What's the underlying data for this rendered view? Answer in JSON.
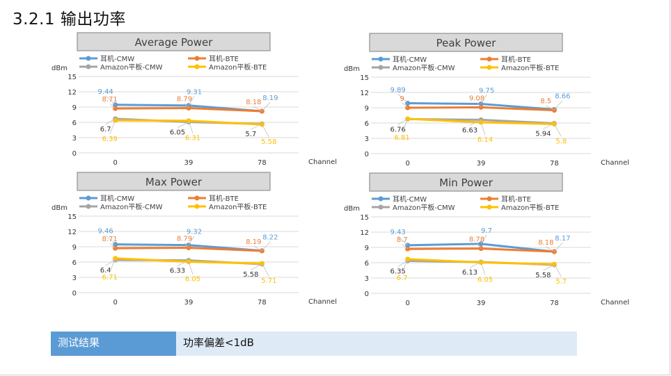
{
  "page_title": "3.2.1 输出功率",
  "result": {
    "label": "测试结果",
    "value": "功率偏差<1dB"
  },
  "colors": {
    "cmw_earphone": "#5b9bd5",
    "bte_earphone": "#ed7d31",
    "cmw_tablet": "#a5a5a5",
    "bte_tablet": "#ffc000"
  },
  "chart_data": [
    {
      "type": "line",
      "title": "Average Power",
      "ylabel": "dBm",
      "xlabel": "Channel",
      "categories": [
        "0",
        "39",
        "78"
      ],
      "ylim": [
        0,
        15
      ],
      "yticks": [
        "0",
        "3",
        "6",
        "9",
        "12",
        "15"
      ],
      "legend_position": "top",
      "series": [
        {
          "name": "耳机-CMW",
          "color": "#5b9bd5",
          "values": [
            9.44,
            9.31,
            8.19
          ],
          "labels": [
            "9.44",
            "9.31",
            "8.19"
          ]
        },
        {
          "name": "耳机-BTE",
          "color": "#ed7d31",
          "values": [
            8.71,
            8.79,
            8.18
          ],
          "labels": [
            "8.71",
            "8.79",
            "8.18"
          ]
        },
        {
          "name": "Amazon平板-CMW",
          "color": "#a5a5a5",
          "values": [
            6.7,
            6.05,
            5.7
          ],
          "labels": [
            "6.7",
            "6.05",
            "5.7"
          ]
        },
        {
          "name": "Amazon平板-BTE",
          "color": "#ffc000",
          "values": [
            6.39,
            6.31,
            5.58
          ],
          "labels": [
            "6.39",
            "6.31",
            "5.58"
          ]
        }
      ]
    },
    {
      "type": "line",
      "title": "Peak Power",
      "ylabel": "dBm",
      "xlabel": "Channel",
      "categories": [
        "0",
        "39",
        "78"
      ],
      "ylim": [
        0,
        15
      ],
      "yticks": [
        "0",
        "3",
        "6",
        "9",
        "12",
        "15"
      ],
      "legend_position": "top",
      "series": [
        {
          "name": "耳机-CMW",
          "color": "#5b9bd5",
          "values": [
            9.89,
            9.75,
            8.66
          ],
          "labels": [
            "9.89",
            "9.75",
            "8.66"
          ]
        },
        {
          "name": "耳机-BTE",
          "color": "#ed7d31",
          "values": [
            9,
            9.08,
            8.5
          ],
          "labels": [
            "9",
            "9.08",
            "8.5"
          ]
        },
        {
          "name": "Amazon平板-CMW",
          "color": "#a5a5a5",
          "values": [
            6.76,
            6.63,
            5.94
          ],
          "labels": [
            "6.76",
            "6.63",
            "5.94"
          ]
        },
        {
          "name": "Amazon平板-BTE",
          "color": "#ffc000",
          "values": [
            6.81,
            6.14,
            5.8
          ],
          "labels": [
            "6.81",
            "6.14",
            "5.8"
          ]
        }
      ]
    },
    {
      "type": "line",
      "title": "Max Power",
      "ylabel": "dBm",
      "xlabel": "Channel",
      "categories": [
        "0",
        "39",
        "78"
      ],
      "ylim": [
        0,
        15
      ],
      "yticks": [
        "0",
        "3",
        "6",
        "9",
        "12",
        "15"
      ],
      "legend_position": "top",
      "series": [
        {
          "name": "耳机-CMW",
          "color": "#5b9bd5",
          "values": [
            9.46,
            9.32,
            8.22
          ],
          "labels": [
            "9.46",
            "9.32",
            "8.22"
          ]
        },
        {
          "name": "耳机-BTE",
          "color": "#ed7d31",
          "values": [
            8.71,
            8.79,
            8.19
          ],
          "labels": [
            "8.71",
            "8.79",
            "8.19"
          ]
        },
        {
          "name": "Amazon平板-CMW",
          "color": "#a5a5a5",
          "values": [
            6.4,
            6.33,
            5.58
          ],
          "labels": [
            "6.4",
            "6.33",
            "5.58"
          ]
        },
        {
          "name": "Amazon平板-BTE",
          "color": "#ffc000",
          "values": [
            6.71,
            6.05,
            5.71
          ],
          "labels": [
            "6.71",
            "6.05",
            "5.71"
          ]
        }
      ]
    },
    {
      "type": "line",
      "title": "Min Power",
      "ylabel": "dBm",
      "xlabel": "Channel",
      "categories": [
        "0",
        "39",
        "78"
      ],
      "ylim": [
        0,
        15
      ],
      "yticks": [
        "0",
        "3",
        "6",
        "9",
        "12",
        "15"
      ],
      "legend_position": "top",
      "series": [
        {
          "name": "耳机-CMW",
          "color": "#5b9bd5",
          "values": [
            9.43,
            9.7,
            8.17
          ],
          "labels": [
            "9.43",
            "9.7",
            "8.17"
          ]
        },
        {
          "name": "耳机-BTE",
          "color": "#ed7d31",
          "values": [
            8.7,
            8.78,
            8.18
          ],
          "labels": [
            "8.7",
            "8.78",
            "8.18"
          ]
        },
        {
          "name": "Amazon平板-CMW",
          "color": "#a5a5a5",
          "values": [
            6.35,
            6.13,
            5.58
          ],
          "labels": [
            "6.35",
            "6.13",
            "5.58"
          ]
        },
        {
          "name": "Amazon平板-BTE",
          "color": "#ffc000",
          "values": [
            6.7,
            6.05,
            5.7
          ],
          "labels": [
            "6.7",
            "6.05",
            "5.7"
          ]
        }
      ]
    }
  ]
}
